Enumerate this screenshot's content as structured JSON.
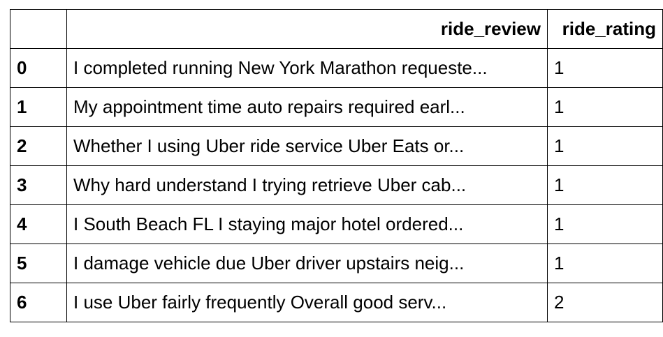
{
  "table": {
    "index_header": "",
    "columns": [
      "ride_review",
      "ride_rating"
    ],
    "rows": [
      {
        "index": "0",
        "ride_review": "I completed running New York Marathon requeste...",
        "ride_rating": "1"
      },
      {
        "index": "1",
        "ride_review": "My appointment time auto repairs required earl...",
        "ride_rating": "1"
      },
      {
        "index": "2",
        "ride_review": "Whether I using Uber ride service Uber Eats or...",
        "ride_rating": "1"
      },
      {
        "index": "3",
        "ride_review": "Why hard understand I trying retrieve Uber cab...",
        "ride_rating": "1"
      },
      {
        "index": "4",
        "ride_review": "I South Beach FL I staying major hotel ordered...",
        "ride_rating": "1"
      },
      {
        "index": "5",
        "ride_review": "I damage vehicle due Uber driver upstairs neig...",
        "ride_rating": "1"
      },
      {
        "index": "6",
        "ride_review": "I use Uber fairly frequently Overall good serv...",
        "ride_rating": "2"
      }
    ]
  }
}
